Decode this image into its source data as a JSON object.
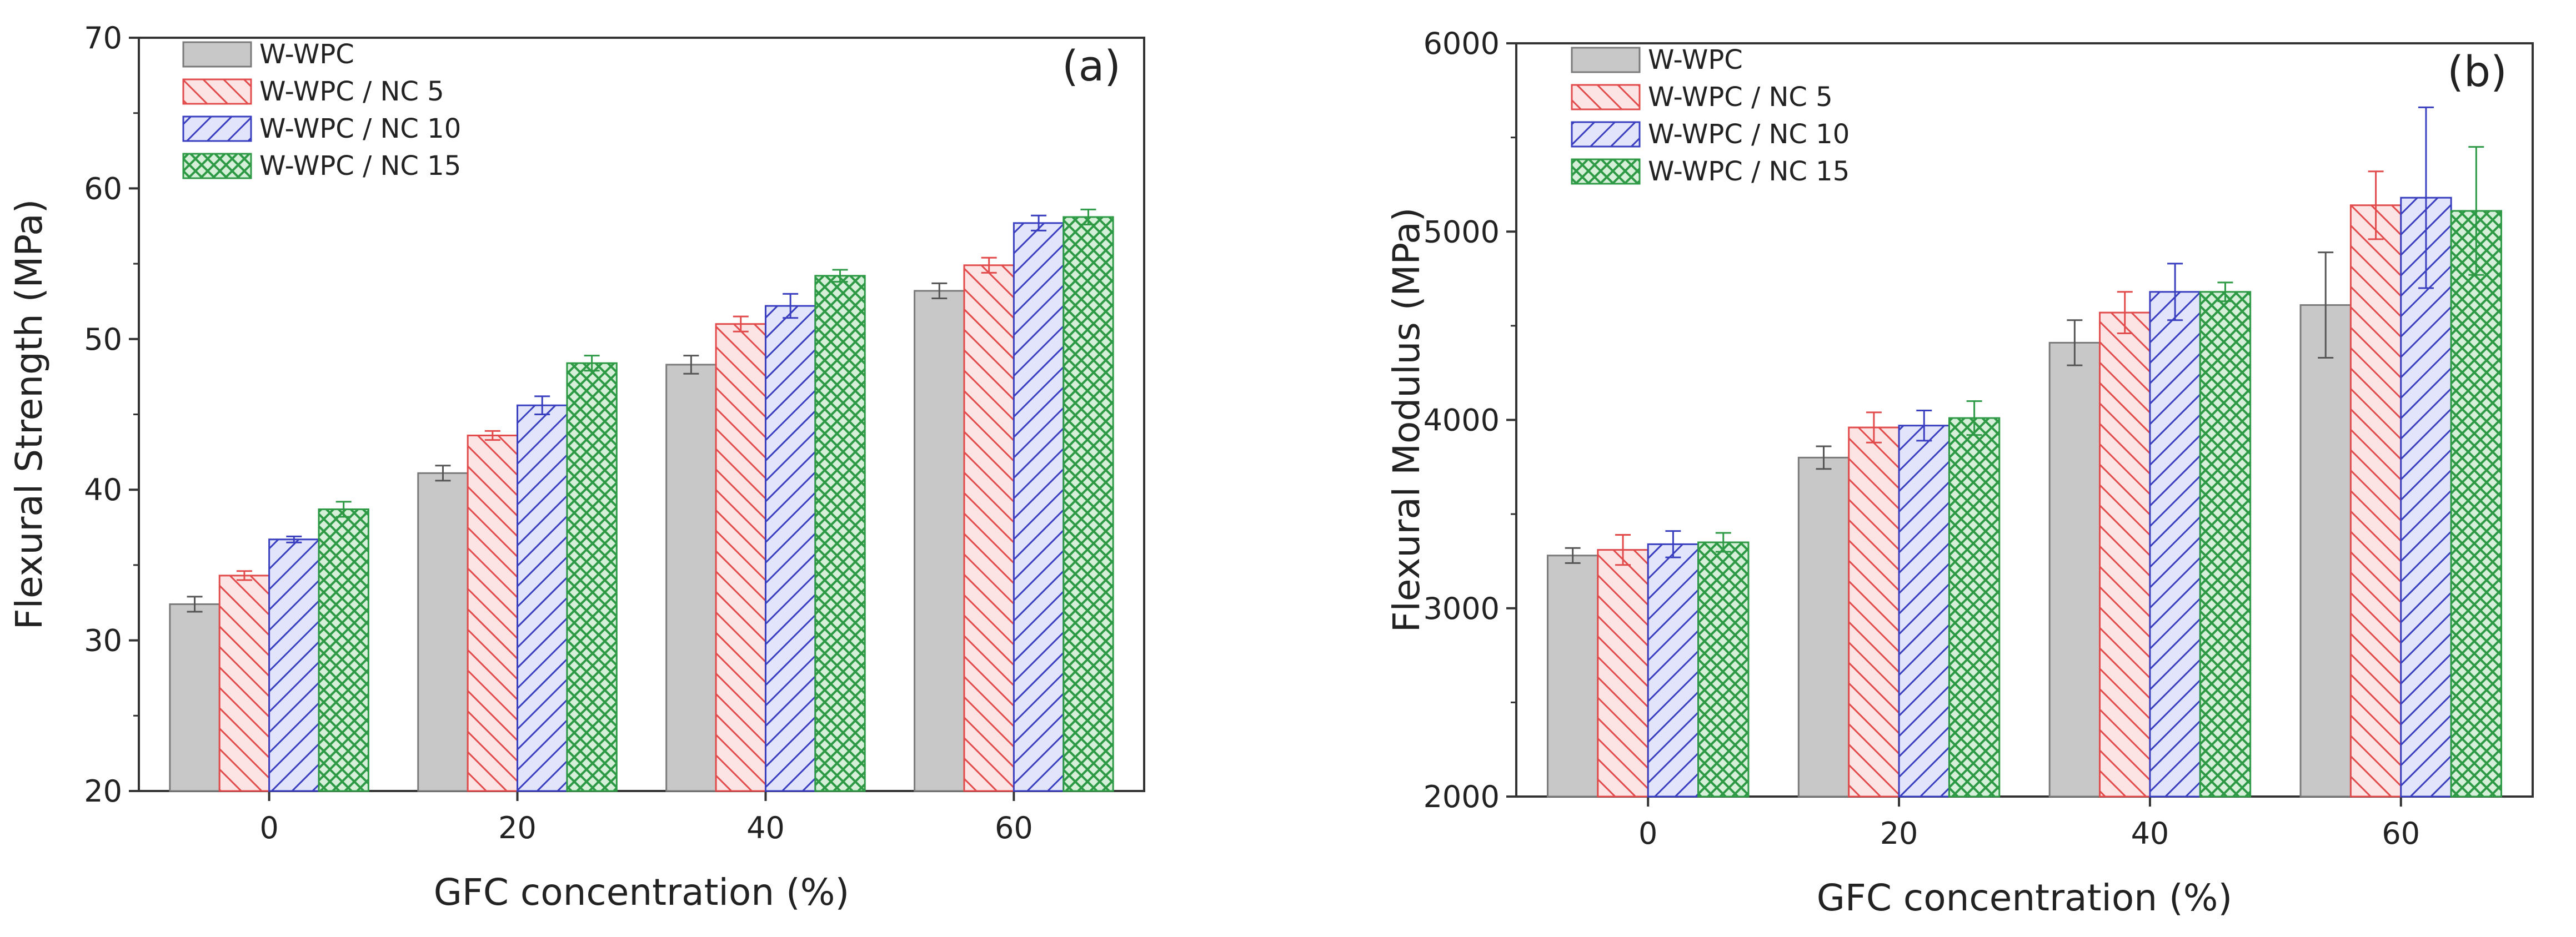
{
  "chart_data": [
    {
      "type": "bar",
      "panel_label": "(a)",
      "xlabel": "GFC concentration (%)",
      "ylabel": "Flexural Strength (MPa)",
      "ylim": [
        20,
        70
      ],
      "yticks": [
        20,
        30,
        40,
        50,
        60,
        70
      ],
      "categories": [
        "0",
        "20",
        "40",
        "60"
      ],
      "legend_position": "top-left",
      "series": [
        {
          "name": "W-WPC",
          "values": [
            32.4,
            41.1,
            48.3,
            53.2
          ],
          "errors": [
            0.5,
            0.5,
            0.6,
            0.5
          ]
        },
        {
          "name": "W-WPC / NC 5",
          "values": [
            34.3,
            43.6,
            51.0,
            54.9
          ],
          "errors": [
            0.3,
            0.3,
            0.5,
            0.5
          ]
        },
        {
          "name": "W-WPC / NC 10",
          "values": [
            36.7,
            45.6,
            52.2,
            57.7
          ],
          "errors": [
            0.2,
            0.6,
            0.8,
            0.5
          ]
        },
        {
          "name": "W-WPC / NC 15",
          "values": [
            38.7,
            48.4,
            54.2,
            58.1
          ],
          "errors": [
            0.5,
            0.5,
            0.4,
            0.5
          ]
        }
      ]
    },
    {
      "type": "bar",
      "panel_label": "(b)",
      "xlabel": "GFC concentration (%)",
      "ylabel": "Flexural Modulus (MPa)",
      "ylim": [
        2000,
        6000
      ],
      "yticks": [
        2000,
        3000,
        4000,
        5000,
        6000
      ],
      "categories": [
        "0",
        "20",
        "40",
        "60"
      ],
      "legend_position": "top-left",
      "series": [
        {
          "name": "W-WPC",
          "values": [
            3280,
            3800,
            4410,
            4610
          ],
          "errors": [
            40,
            60,
            120,
            280
          ]
        },
        {
          "name": "W-WPC / NC 5",
          "values": [
            3310,
            3960,
            4570,
            5140
          ],
          "errors": [
            80,
            80,
            110,
            180
          ]
        },
        {
          "name": "W-WPC / NC 10",
          "values": [
            3340,
            3970,
            4680,
            5180
          ],
          "errors": [
            70,
            80,
            150,
            480
          ]
        },
        {
          "name": "W-WPC / NC 15",
          "values": [
            3350,
            4010,
            4680,
            5110
          ],
          "errors": [
            50,
            90,
            50,
            340
          ]
        }
      ]
    }
  ],
  "colors": {
    "W-WPC": "#c8c8c8",
    "W-WPC / NC 5": "#e24b4b",
    "W-WPC / NC 10": "#3a3fbf",
    "W-WPC / NC 15": "#2e9a45"
  }
}
